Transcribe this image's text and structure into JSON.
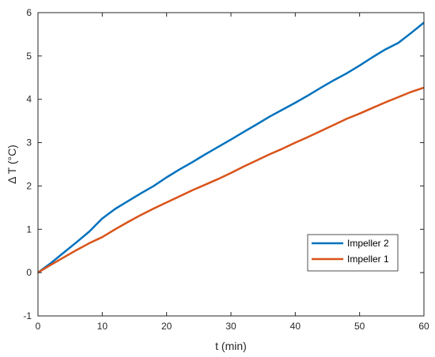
{
  "chart_data": {
    "type": "line",
    "xlabel": "t (min)",
    "ylabel": "Δ T (°C)",
    "xlim": [
      0,
      60
    ],
    "ylim": [
      -1,
      6
    ],
    "xticks": [
      "0",
      "10",
      "20",
      "30",
      "40",
      "50",
      "60"
    ],
    "yticks": [
      "-1",
      "0",
      "1",
      "2",
      "3",
      "4",
      "5",
      "6"
    ],
    "grid": false,
    "legend_position": "lower-right",
    "series": [
      {
        "name": "Impeller 2",
        "color": "#0072BD",
        "x": [
          0,
          2,
          4,
          6,
          8,
          9,
          10,
          12,
          14,
          16,
          18,
          20,
          22,
          24,
          26,
          28,
          30,
          32,
          34,
          36,
          38,
          40,
          42,
          44,
          46,
          48,
          50,
          52,
          54,
          56,
          58,
          60
        ],
        "y": [
          0,
          0.22,
          0.46,
          0.7,
          0.95,
          1.1,
          1.25,
          1.47,
          1.65,
          1.83,
          2.0,
          2.2,
          2.38,
          2.55,
          2.73,
          2.9,
          3.07,
          3.25,
          3.42,
          3.6,
          3.76,
          3.92,
          4.09,
          4.27,
          4.44,
          4.6,
          4.78,
          4.97,
          5.15,
          5.3,
          5.53,
          5.77
        ]
      },
      {
        "name": "Impeller 1",
        "color": "#D95319",
        "x": [
          0,
          2,
          4,
          6,
          8,
          10,
          12,
          14,
          16,
          18,
          20,
          22,
          24,
          26,
          28,
          30,
          32,
          34,
          36,
          38,
          40,
          42,
          44,
          46,
          48,
          50,
          52,
          54,
          56,
          58,
          60
        ],
        "y": [
          0,
          0.18,
          0.35,
          0.52,
          0.68,
          0.82,
          1.0,
          1.17,
          1.33,
          1.48,
          1.62,
          1.76,
          1.9,
          2.03,
          2.16,
          2.3,
          2.45,
          2.59,
          2.73,
          2.86,
          3.0,
          3.13,
          3.27,
          3.41,
          3.55,
          3.67,
          3.8,
          3.93,
          4.05,
          4.17,
          4.27
        ]
      }
    ],
    "legend_order": [
      "Impeller 2",
      "Impeller 1"
    ]
  }
}
